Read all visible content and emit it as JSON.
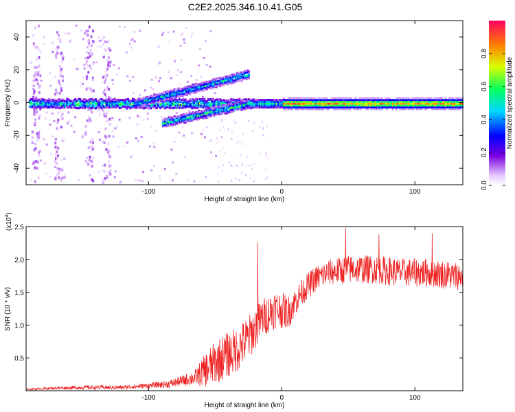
{
  "title": "C2E2.2025.346.10.41.G05",
  "colors": {
    "snr_line": "#ee2222",
    "axis": "#000000",
    "background": "#ffffff"
  },
  "chart_data": [
    {
      "type": "heatmap",
      "name": "spectrogram",
      "xlabel": "Height of straight line (km)",
      "ylabel": "Frequency (Hz)",
      "xlim": [
        -192,
        136
      ],
      "ylim": [
        -50,
        50
      ],
      "x_ticks": [
        -100,
        0,
        100
      ],
      "y_ticks": [
        -40,
        -20,
        0,
        20,
        40
      ],
      "colorbar": {
        "label": "Normalized spectral amplitude",
        "range": [
          0.0,
          1.0
        ],
        "ticks": [
          "0.0",
          "0.2",
          "0.4",
          "0.6",
          "0.8"
        ],
        "scale": "violet-blue-cyan-green-yellow-red"
      },
      "features": [
        {
          "name": "carrier",
          "x_range": [
            -190,
            136
          ],
          "freq": 0,
          "amplitude": [
            0.35,
            0.95
          ]
        },
        {
          "name": "upper_branch",
          "x_range": [
            -110,
            -25
          ],
          "freq_start": 0,
          "freq_end": 18,
          "amplitude": 0.5
        },
        {
          "name": "lower_branch",
          "x_range": [
            -90,
            -25
          ],
          "freq_start": -12,
          "freq_end": 0,
          "amplitude": 0.55
        },
        {
          "name": "vertical_noise_bands",
          "x_centers": [
            -185,
            -168,
            -145,
            -132
          ],
          "amplitude": 0.1
        }
      ]
    },
    {
      "type": "line",
      "name": "snr",
      "xlabel": "Height of straight line (km)",
      "ylabel": "SNR (10 * v/v)",
      "y_multiplier": "(x10",
      "y_multiplier_exp": "4",
      "y_multiplier_close": ")",
      "xlim": [
        -192,
        136
      ],
      "ylim": [
        0,
        2.5
      ],
      "x_ticks": [
        -100,
        0,
        100
      ],
      "y_ticks": [
        "0.5",
        "1.0",
        "1.5",
        "2.0",
        "2.5"
      ],
      "series": [
        {
          "name": "SNR envelope",
          "x": [
            -192,
            -170,
            -150,
            -120,
            -100,
            -85,
            -75,
            -65,
            -55,
            -45,
            -35,
            -25,
            -15,
            -5,
            5,
            15,
            25,
            35,
            50,
            70,
            90,
            110,
            130,
            136
          ],
          "y": [
            0.02,
            0.04,
            0.05,
            0.05,
            0.08,
            0.1,
            0.15,
            0.2,
            0.35,
            0.5,
            0.6,
            0.8,
            1.1,
            1.25,
            1.2,
            1.5,
            1.7,
            1.8,
            1.85,
            1.85,
            1.8,
            1.8,
            1.75,
            1.75
          ],
          "noise": [
            0.01,
            0.02,
            0.03,
            0.03,
            0.04,
            0.06,
            0.08,
            0.12,
            0.3,
            0.35,
            0.35,
            0.35,
            0.3,
            0.3,
            0.25,
            0.2,
            0.2,
            0.2,
            0.22,
            0.22,
            0.22,
            0.22,
            0.22,
            0.22
          ]
        }
      ],
      "spikes": [
        {
          "x": -18,
          "y": 2.27
        },
        {
          "x": 48,
          "y": 2.48
        },
        {
          "x": 73,
          "y": 2.38
        },
        {
          "x": 113,
          "y": 2.4
        }
      ]
    }
  ]
}
